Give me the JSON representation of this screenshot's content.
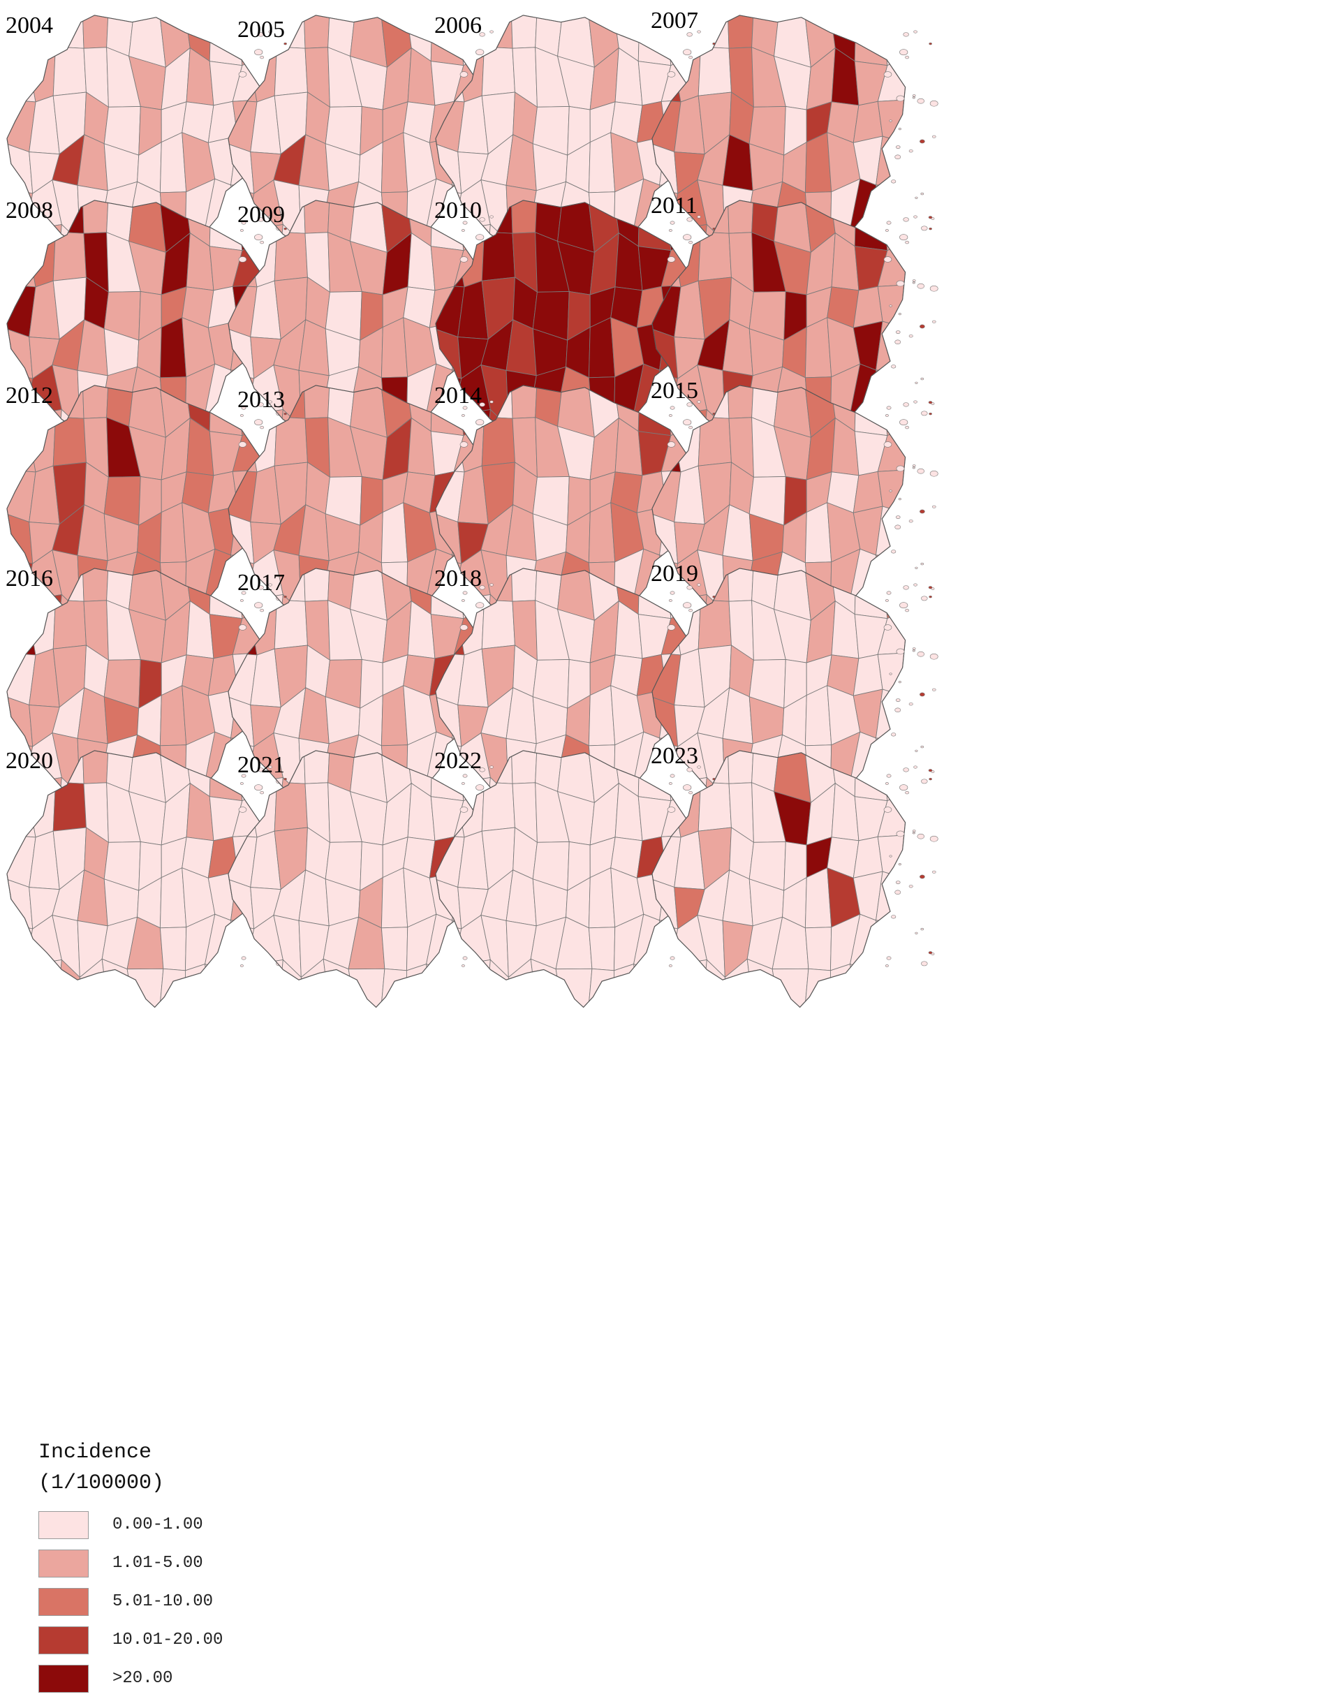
{
  "colors": [
    "#fde3e3",
    "#eba69e",
    "#d97465",
    "#b63b31",
    "#8c0a0a"
  ],
  "panels": [
    {
      "year": "2004",
      "levels": [
        0,
        1,
        0,
        1,
        0,
        0,
        1,
        2,
        0,
        1,
        0,
        1,
        0,
        0,
        0,
        1,
        0,
        1,
        0,
        0,
        1,
        0,
        0,
        1,
        0,
        1,
        0,
        0,
        0,
        1,
        0,
        0,
        3,
        1,
        0,
        0,
        0,
        1,
        0,
        0,
        1,
        0,
        0,
        0,
        0,
        0,
        1,
        0,
        0,
        0,
        0,
        1,
        0,
        0,
        1,
        0,
        0,
        0,
        0,
        2
      ]
    },
    {
      "year": "2005",
      "levels": [
        0,
        1,
        0,
        1,
        0,
        1,
        2,
        0,
        1,
        0,
        1,
        1,
        0,
        1,
        0,
        0,
        1,
        1,
        0,
        1,
        1,
        0,
        0,
        1,
        0,
        1,
        1,
        0,
        1,
        0,
        0,
        1,
        3,
        1,
        0,
        0,
        1,
        0,
        1,
        0,
        1,
        1,
        0,
        0,
        1,
        0,
        1,
        0,
        0,
        1,
        0,
        1,
        0,
        0,
        1,
        0,
        1,
        0,
        0,
        1
      ]
    },
    {
      "year": "2006",
      "levels": [
        0,
        0,
        1,
        0,
        0,
        0,
        1,
        0,
        0,
        0,
        0,
        1,
        0,
        0,
        0,
        0,
        1,
        0,
        0,
        0,
        1,
        0,
        0,
        1,
        0,
        0,
        0,
        0,
        2,
        0,
        0,
        0,
        0,
        1,
        0,
        0,
        0,
        1,
        0,
        0,
        0,
        0,
        0,
        1,
        0,
        0,
        0,
        0,
        1,
        0,
        0,
        0,
        0,
        2,
        0,
        0,
        0,
        0,
        0,
        1
      ]
    },
    {
      "year": "2007",
      "levels": [
        0,
        1,
        0,
        2,
        1,
        0,
        1,
        4,
        1,
        0,
        3,
        1,
        0,
        2,
        1,
        0,
        1,
        4,
        1,
        0,
        2,
        1,
        1,
        2,
        1,
        0,
        3,
        1,
        1,
        1,
        0,
        2,
        1,
        4,
        1,
        1,
        2,
        1,
        0,
        1,
        1,
        2,
        1,
        0,
        1,
        2,
        1,
        0,
        4,
        1,
        1,
        2,
        1,
        0,
        1,
        1,
        0,
        2,
        1,
        1
      ]
    },
    {
      "year": "2008",
      "levels": [
        4,
        1,
        4,
        1,
        0,
        2,
        4,
        1,
        0,
        4,
        1,
        2,
        1,
        4,
        0,
        1,
        4,
        1,
        1,
        3,
        4,
        1,
        0,
        4,
        1,
        1,
        2,
        1,
        0,
        4,
        1,
        1,
        2,
        1,
        0,
        1,
        4,
        1,
        1,
        1,
        2,
        3,
        1,
        0,
        1,
        1,
        2,
        1,
        0,
        1,
        1,
        1,
        0,
        2,
        1,
        0,
        1,
        1,
        0,
        1
      ]
    },
    {
      "year": "2009",
      "levels": [
        0,
        1,
        0,
        1,
        1,
        0,
        3,
        1,
        0,
        1,
        1,
        0,
        1,
        0,
        1,
        1,
        4,
        0,
        1,
        1,
        1,
        0,
        1,
        1,
        0,
        2,
        1,
        0,
        1,
        1,
        0,
        1,
        1,
        1,
        0,
        1,
        1,
        1,
        0,
        1,
        1,
        0,
        1,
        1,
        0,
        1,
        4,
        0,
        1,
        1,
        0,
        1,
        1,
        0,
        1,
        1,
        0,
        1,
        0,
        1
      ]
    },
    {
      "year": "2010",
      "levels": [
        4,
        3,
        4,
        2,
        4,
        4,
        3,
        4,
        3,
        4,
        4,
        2,
        4,
        3,
        4,
        4,
        3,
        4,
        4,
        2,
        4,
        4,
        3,
        4,
        4,
        3,
        4,
        4,
        2,
        4,
        3,
        4,
        4,
        3,
        4,
        4,
        4,
        2,
        4,
        3,
        4,
        4,
        3,
        4,
        4,
        2,
        4,
        4,
        3,
        4,
        2,
        4,
        3,
        4,
        4,
        3,
        4,
        1,
        3,
        4
      ]
    },
    {
      "year": "2011",
      "levels": [
        1,
        2,
        1,
        1,
        3,
        1,
        2,
        1,
        4,
        1,
        1,
        2,
        1,
        1,
        4,
        2,
        1,
        1,
        3,
        1,
        4,
        1,
        2,
        1,
        1,
        4,
        1,
        2,
        1,
        1,
        3,
        1,
        4,
        1,
        1,
        2,
        1,
        1,
        4,
        1,
        2,
        1,
        1,
        3,
        1,
        1,
        2,
        1,
        4,
        1,
        1,
        2,
        1,
        1,
        3,
        1,
        1,
        2,
        1,
        1
      ]
    },
    {
      "year": "2012",
      "levels": [
        1,
        2,
        1,
        1,
        2,
        1,
        1,
        3,
        1,
        2,
        1,
        1,
        2,
        1,
        4,
        1,
        1,
        2,
        1,
        2,
        1,
        1,
        3,
        1,
        2,
        1,
        1,
        2,
        1,
        1,
        2,
        1,
        3,
        1,
        1,
        2,
        1,
        1,
        2,
        1,
        3,
        1,
        1,
        2,
        1,
        2,
        1,
        1,
        2,
        1,
        1,
        3,
        1,
        1,
        2,
        1,
        1,
        2,
        1,
        1
      ]
    },
    {
      "year": "2013",
      "levels": [
        0,
        1,
        2,
        1,
        0,
        1,
        2,
        1,
        1,
        3,
        1,
        0,
        1,
        2,
        1,
        1,
        3,
        1,
        0,
        1,
        2,
        1,
        1,
        1,
        0,
        2,
        1,
        1,
        3,
        1,
        0,
        1,
        2,
        1,
        1,
        1,
        0,
        2,
        1,
        1,
        1,
        0,
        1,
        2,
        1,
        1,
        0,
        1,
        1,
        2,
        1,
        0,
        1,
        1,
        2,
        1,
        0,
        1,
        1,
        1
      ]
    },
    {
      "year": "2014",
      "levels": [
        0,
        1,
        0,
        1,
        2,
        1,
        0,
        1,
        3,
        1,
        0,
        1,
        2,
        1,
        1,
        0,
        1,
        1,
        3,
        1,
        0,
        1,
        2,
        1,
        0,
        1,
        1,
        2,
        1,
        0,
        1,
        3,
        1,
        1,
        0,
        1,
        1,
        2,
        1,
        0,
        1,
        1,
        1,
        0,
        1,
        2,
        1,
        0,
        1,
        1,
        1,
        0,
        1,
        2,
        1,
        0,
        1,
        1,
        0,
        1
      ]
    },
    {
      "year": "2015",
      "levels": [
        0,
        1,
        0,
        1,
        0,
        1,
        2,
        1,
        0,
        1,
        4,
        0,
        1,
        1,
        0,
        1,
        2,
        1,
        0,
        1,
        1,
        0,
        1,
        1,
        0,
        3,
        1,
        0,
        1,
        1,
        0,
        1,
        1,
        0,
        2,
        1,
        0,
        1,
        1,
        0,
        1,
        1,
        0,
        1,
        2,
        0,
        1,
        1,
        0,
        1,
        0,
        1,
        1,
        0,
        1,
        1,
        0,
        1,
        0,
        1
      ]
    },
    {
      "year": "2016",
      "levels": [
        0,
        1,
        0,
        1,
        0,
        1,
        1,
        2,
        0,
        1,
        4,
        0,
        1,
        1,
        0,
        1,
        1,
        0,
        2,
        1,
        0,
        1,
        1,
        0,
        1,
        3,
        0,
        1,
        1,
        0,
        1,
        1,
        0,
        1,
        2,
        0,
        1,
        1,
        0,
        1,
        1,
        0,
        1,
        1,
        0,
        2,
        1,
        0,
        1,
        1,
        0,
        1,
        0,
        1,
        1,
        0,
        1,
        0,
        1,
        1
      ]
    },
    {
      "year": "2017",
      "levels": [
        0,
        1,
        0,
        0,
        1,
        0,
        1,
        2,
        0,
        0,
        4,
        1,
        0,
        1,
        0,
        0,
        1,
        0,
        1,
        2,
        0,
        0,
        1,
        0,
        1,
        0,
        0,
        1,
        3,
        0,
        0,
        1,
        0,
        1,
        0,
        0,
        1,
        0,
        1,
        0,
        0,
        1,
        0,
        0,
        1,
        0,
        1,
        0,
        0,
        1,
        0,
        0,
        1,
        0,
        1,
        0,
        0,
        1,
        0,
        0
      ]
    },
    {
      "year": "2018",
      "levels": [
        0,
        0,
        1,
        0,
        0,
        1,
        0,
        2,
        0,
        0,
        3,
        0,
        0,
        1,
        0,
        0,
        1,
        0,
        0,
        2,
        0,
        0,
        1,
        0,
        0,
        0,
        1,
        0,
        2,
        0,
        0,
        1,
        0,
        0,
        0,
        1,
        0,
        0,
        1,
        0,
        0,
        0,
        1,
        0,
        0,
        2,
        0,
        0,
        0,
        1,
        0,
        0,
        0,
        1,
        0,
        0,
        0,
        0,
        1,
        0
      ]
    },
    {
      "year": "2019",
      "levels": [
        0,
        0,
        1,
        0,
        0,
        0,
        1,
        0,
        0,
        2,
        0,
        0,
        1,
        0,
        0,
        0,
        1,
        0,
        0,
        0,
        2,
        0,
        0,
        1,
        0,
        0,
        0,
        1,
        0,
        0,
        2,
        0,
        0,
        0,
        1,
        0,
        0,
        0,
        1,
        0,
        0,
        0,
        0,
        1,
        0,
        0,
        0,
        1,
        0,
        0,
        0,
        0,
        1,
        0,
        0,
        0,
        0,
        1,
        0,
        0
      ]
    },
    {
      "year": "2020",
      "levels": [
        0,
        0,
        0,
        1,
        0,
        0,
        0,
        0,
        1,
        0,
        0,
        0,
        3,
        0,
        0,
        0,
        0,
        1,
        0,
        0,
        0,
        0,
        0,
        1,
        0,
        0,
        0,
        0,
        2,
        0,
        0,
        0,
        0,
        1,
        0,
        0,
        0,
        0,
        0,
        1,
        0,
        0,
        0,
        0,
        0,
        1,
        0,
        0,
        0,
        0,
        0,
        0,
        1,
        0,
        0,
        0,
        0,
        0,
        0,
        0
      ]
    },
    {
      "year": "2021",
      "levels": [
        0,
        0,
        0,
        0,
        1,
        0,
        0,
        0,
        0,
        0,
        0,
        0,
        1,
        0,
        0,
        0,
        0,
        0,
        0,
        0,
        0,
        0,
        1,
        0,
        0,
        0,
        0,
        0,
        3,
        0,
        0,
        0,
        0,
        0,
        0,
        1,
        0,
        0,
        0,
        0,
        0,
        0,
        0,
        0,
        0,
        1,
        0,
        0,
        0,
        0,
        0,
        0,
        0,
        0,
        0,
        0,
        0,
        0,
        0,
        0
      ]
    },
    {
      "year": "2022",
      "levels": [
        0,
        0,
        0,
        0,
        0,
        0,
        0,
        0,
        0,
        0,
        0,
        0,
        0,
        0,
        0,
        0,
        0,
        0,
        0,
        0,
        0,
        0,
        0,
        0,
        0,
        0,
        0,
        0,
        3,
        0,
        0,
        0,
        0,
        0,
        0,
        0,
        0,
        0,
        0,
        0,
        0,
        0,
        0,
        0,
        0,
        0,
        0,
        0,
        0,
        0,
        0,
        0,
        0,
        0,
        0,
        0,
        0,
        0,
        0,
        0
      ]
    },
    {
      "year": "2023",
      "levels": [
        0,
        4,
        0,
        0,
        0,
        2,
        0,
        0,
        0,
        0,
        0,
        1,
        0,
        0,
        0,
        4,
        0,
        0,
        0,
        0,
        0,
        0,
        1,
        0,
        0,
        0,
        4,
        0,
        0,
        0,
        0,
        2,
        0,
        0,
        0,
        0,
        0,
        3,
        0,
        0,
        0,
        0,
        0,
        1,
        0,
        0,
        0,
        0,
        0,
        0,
        1,
        0,
        0,
        0,
        0,
        0,
        0,
        0,
        0,
        0
      ]
    }
  ],
  "legend": {
    "title_line1": "Incidence",
    "title_line2": "(1/100000)",
    "items": [
      {
        "label": "0.00-1.00"
      },
      {
        "label": "1.01-5.00"
      },
      {
        "label": "5.01-10.00"
      },
      {
        "label": "10.01-20.00"
      },
      {
        "label": ">20.00"
      }
    ]
  }
}
